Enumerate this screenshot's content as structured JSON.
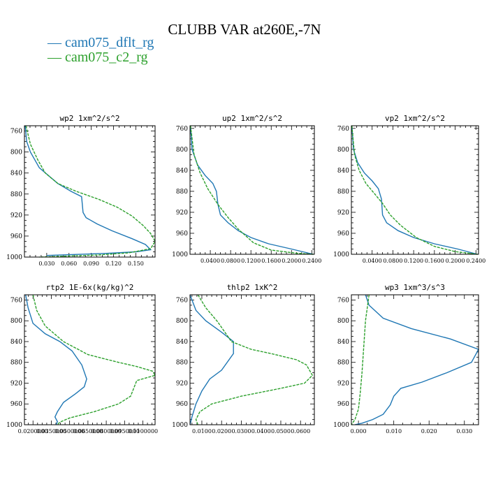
{
  "figure": {
    "title": "CLUBB VAR at260E,-7N",
    "legend": [
      {
        "label": "— cam075_dflt_rg",
        "color": "#1f77b4"
      },
      {
        "label": "— cam075_c2_rg",
        "color": "#2ca02c"
      }
    ]
  },
  "chart_data": [
    {
      "type": "line",
      "title": "wp2   1xm^2/s^2",
      "xlim": [
        0,
        0.176
      ],
      "ylim": [
        750,
        1000
      ],
      "x_ticks": [
        0.03,
        0.06,
        0.09,
        0.12,
        0.15
      ],
      "x_tick_labels": [
        "0.030",
        "0.060",
        "0.090",
        "0.120",
        "0.150"
      ],
      "y_ticks": [
        760,
        800,
        840,
        880,
        920,
        960,
        1000
      ],
      "y_tick_labels": [
        "760",
        "800",
        "840",
        "880",
        "920",
        "960",
        "1000"
      ],
      "series": [
        {
          "name": "cam075_dflt_rg",
          "color": "#1f77b4",
          "dashed": false,
          "x": [
            0.001,
            0.003,
            0.008,
            0.02,
            0.045,
            0.063,
            0.077,
            0.079,
            0.083,
            0.098,
            0.118,
            0.145,
            0.163,
            0.17,
            0.15,
            0.11,
            0.07,
            0.03
          ],
          "y": [
            750,
            780,
            800,
            830,
            860,
            875,
            885,
            915,
            925,
            937,
            950,
            965,
            976,
            986,
            990,
            993,
            995,
            997
          ]
        },
        {
          "name": "cam075_c2_rg",
          "color": "#2ca02c",
          "dashed": true,
          "x": [
            0.002,
            0.008,
            0.018,
            0.028,
            0.045,
            0.07,
            0.1,
            0.125,
            0.145,
            0.16,
            0.17,
            0.176,
            0.17,
            0.14,
            0.1,
            0.06,
            0.02
          ],
          "y": [
            750,
            785,
            815,
            840,
            860,
            875,
            890,
            905,
            922,
            940,
            955,
            970,
            984,
            992,
            996,
            998,
            1000
          ]
        }
      ]
    },
    {
      "type": "line",
      "title": "up2   1xm^2/s^2",
      "xlim": [
        0,
        0.245
      ],
      "ylim": [
        755,
        1000
      ],
      "x_ticks": [
        0.04,
        0.08,
        0.12,
        0.16,
        0.2,
        0.24
      ],
      "x_tick_labels": [
        "0.0400",
        "0.0800",
        "0.1200",
        "0.1600",
        "0.2000",
        "0.2400"
      ],
      "y_ticks": [
        760,
        800,
        840,
        880,
        920,
        960,
        1000
      ],
      "y_tick_labels": [
        "760",
        "800",
        "840",
        "880",
        "920",
        "960",
        "1000"
      ],
      "series": [
        {
          "name": "cam075_dflt_rg",
          "color": "#1f77b4",
          "dashed": false,
          "x": [
            0.001,
            0.004,
            0.015,
            0.03,
            0.045,
            0.052,
            0.055,
            0.06,
            0.075,
            0.095,
            0.12,
            0.155,
            0.2,
            0.243
          ],
          "y": [
            755,
            800,
            830,
            850,
            865,
            880,
            905,
            925,
            940,
            955,
            968,
            980,
            990,
            1000
          ]
        },
        {
          "name": "cam075_c2_rg",
          "color": "#2ca02c",
          "dashed": true,
          "x": [
            0.001,
            0.008,
            0.02,
            0.035,
            0.055,
            0.075,
            0.095,
            0.11,
            0.125,
            0.16,
            0.21,
            0.243
          ],
          "y": [
            755,
            810,
            845,
            875,
            905,
            930,
            952,
            965,
            978,
            992,
            998,
            1000
          ]
        }
      ]
    },
    {
      "type": "line",
      "title": "vp2   1xm^2/s^2",
      "xlim": [
        0,
        0.245
      ],
      "ylim": [
        755,
        1000
      ],
      "x_ticks": [
        0.04,
        0.08,
        0.12,
        0.16,
        0.2,
        0.24
      ],
      "x_tick_labels": [
        "0.0400",
        "0.0800",
        "0.1200",
        "0.1600",
        "0.2000",
        "0.2400"
      ],
      "y_ticks": [
        760,
        800,
        840,
        880,
        920,
        960,
        1000
      ],
      "y_tick_labels": [
        "760",
        "800",
        "840",
        "880",
        "920",
        "960",
        "1000"
      ],
      "series": [
        {
          "name": "cam075_dflt_rg",
          "color": "#1f77b4",
          "dashed": false,
          "x": [
            0.001,
            0.004,
            0.012,
            0.025,
            0.04,
            0.052,
            0.058,
            0.06,
            0.068,
            0.09,
            0.12,
            0.16,
            0.205,
            0.243
          ],
          "y": [
            755,
            800,
            825,
            845,
            860,
            875,
            895,
            925,
            940,
            955,
            968,
            980,
            990,
            1000
          ]
        },
        {
          "name": "cam075_c2_rg",
          "color": "#2ca02c",
          "dashed": true,
          "x": [
            0.001,
            0.006,
            0.015,
            0.028,
            0.045,
            0.06,
            0.075,
            0.095,
            0.125,
            0.16,
            0.2,
            0.243
          ],
          "y": [
            755,
            810,
            840,
            865,
            885,
            903,
            925,
            945,
            968,
            985,
            995,
            1000
          ]
        }
      ]
    },
    {
      "type": "line",
      "title": "rtp2   1E-6x(kg/kg)^2",
      "xlim": [
        0.013,
        0.12
      ],
      "ylim": [
        750,
        1000
      ],
      "x_ticks": [
        0.02,
        0.035,
        0.05,
        0.065,
        0.08,
        0.095,
        0.11
      ],
      "x_tick_labels": [
        "0.0200000",
        "0.0350000",
        "0.0500000",
        "0.0650000",
        "0.0800000",
        "0.0950000",
        "0.1100000"
      ],
      "y_ticks": [
        760,
        800,
        840,
        880,
        920,
        960,
        1000
      ],
      "y_tick_labels": [
        "760",
        "800",
        "840",
        "880",
        "920",
        "960",
        "1000"
      ],
      "series": [
        {
          "name": "cam075_dflt_rg",
          "color": "#1f77b4",
          "dashed": false,
          "x": [
            0.014,
            0.016,
            0.02,
            0.03,
            0.042,
            0.052,
            0.06,
            0.064,
            0.062,
            0.055,
            0.045,
            0.04,
            0.038,
            0.04,
            0.039
          ],
          "y": [
            750,
            775,
            805,
            825,
            840,
            858,
            885,
            912,
            927,
            940,
            957,
            975,
            985,
            994,
            1000
          ]
        },
        {
          "name": "cam075_c2_rg",
          "color": "#2ca02c",
          "dashed": true,
          "x": [
            0.02,
            0.023,
            0.03,
            0.045,
            0.065,
            0.09,
            0.105,
            0.118,
            0.12,
            0.105,
            0.1,
            0.09,
            0.07,
            0.05,
            0.042,
            0.04
          ],
          "y": [
            750,
            780,
            810,
            840,
            865,
            880,
            888,
            897,
            905,
            915,
            945,
            960,
            975,
            987,
            995,
            1000
          ]
        }
      ]
    },
    {
      "type": "line",
      "title": "thlp2   1xK^2",
      "xlim": [
        0.004,
        0.067
      ],
      "ylim": [
        750,
        1000
      ],
      "x_ticks": [
        0.01,
        0.02,
        0.03,
        0.04,
        0.05,
        0.06
      ],
      "x_tick_labels": [
        "0.0100",
        "0.0200",
        "0.0300",
        "0.0400",
        "0.0500",
        "0.0600"
      ],
      "y_ticks": [
        760,
        800,
        840,
        880,
        920,
        960,
        1000
      ],
      "y_tick_labels": [
        "760",
        "800",
        "840",
        "880",
        "920",
        "960",
        "1000"
      ],
      "series": [
        {
          "name": "cam075_dflt_rg",
          "color": "#1f77b4",
          "dashed": false,
          "x": [
            0.004,
            0.007,
            0.012,
            0.02,
            0.026,
            0.026,
            0.02,
            0.014,
            0.01,
            0.007,
            0.005,
            0.004
          ],
          "y": [
            750,
            780,
            800,
            822,
            840,
            863,
            895,
            912,
            935,
            960,
            985,
            1000
          ]
        },
        {
          "name": "cam075_c2_rg",
          "color": "#2ca02c",
          "dashed": true,
          "x": [
            0.008,
            0.012,
            0.018,
            0.025,
            0.035,
            0.045,
            0.058,
            0.063,
            0.066,
            0.062,
            0.05,
            0.03,
            0.015,
            0.009,
            0.007,
            0.008
          ],
          "y": [
            750,
            775,
            802,
            840,
            855,
            863,
            875,
            885,
            905,
            920,
            930,
            945,
            960,
            975,
            990,
            1000
          ]
        }
      ]
    },
    {
      "type": "line",
      "title": "wp3   1xm^3/s^3",
      "xlim": [
        -0.002,
        0.034
      ],
      "ylim": [
        750,
        1000
      ],
      "x_ticks": [
        0,
        0.01,
        0.02,
        0.03
      ],
      "x_tick_labels": [
        "0.000",
        "0.010",
        "0.020",
        "0.030"
      ],
      "y_ticks": [
        760,
        800,
        840,
        880,
        920,
        960,
        1000
      ],
      "y_tick_labels": [
        "760",
        "800",
        "840",
        "880",
        "920",
        "960",
        "1000"
      ],
      "series": [
        {
          "name": "cam075_dflt_rg",
          "color": "#1f77b4",
          "dashed": false,
          "x": [
            0.002,
            0.003,
            0.007,
            0.015,
            0.026,
            0.034,
            0.032,
            0.025,
            0.018,
            0.012,
            0.01,
            0.009,
            0.007,
            0.004,
            0.001,
            -0.001
          ],
          "y": [
            750,
            770,
            795,
            815,
            835,
            855,
            880,
            900,
            918,
            930,
            945,
            962,
            980,
            990,
            997,
            1000
          ]
        },
        {
          "name": "cam075_c2_rg",
          "color": "#2ca02c",
          "dashed": true,
          "x": [
            0.003,
            0.002,
            0.0015,
            0.001,
            0.0005,
            0.0,
            -0.001,
            -0.002
          ],
          "y": [
            750,
            800,
            850,
            900,
            940,
            970,
            990,
            1000
          ]
        }
      ]
    }
  ]
}
